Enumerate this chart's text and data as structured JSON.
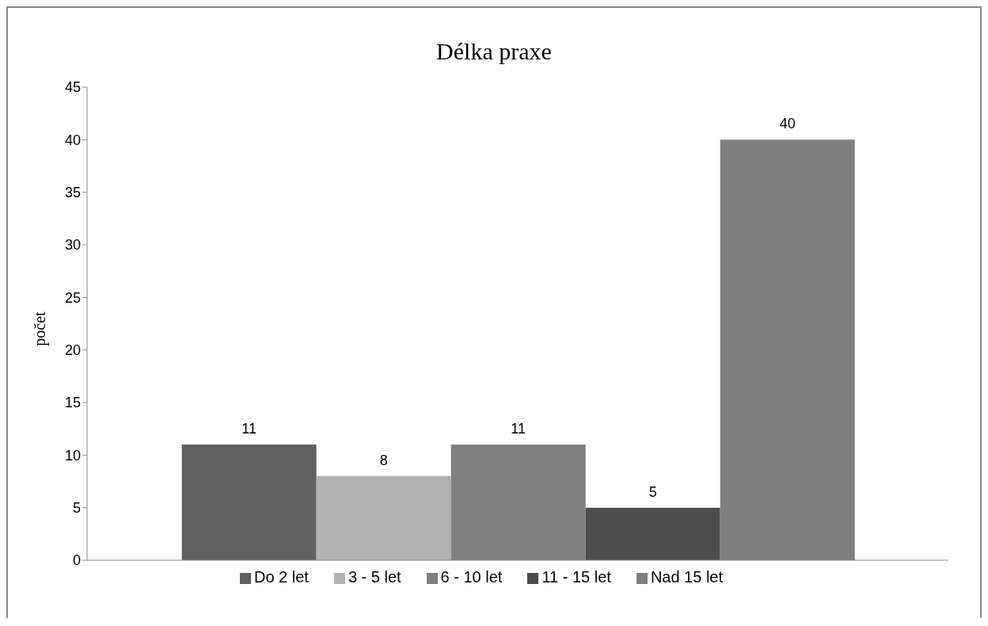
{
  "chart_data": {
    "type": "bar",
    "title": "Délka praxe",
    "ylabel": "počet",
    "categories": [
      null
    ],
    "series": [
      {
        "name": "Do 2 let",
        "color": "#606060",
        "values": [
          11
        ]
      },
      {
        "name": "3 - 5 let",
        "color": "#b2b2b2",
        "values": [
          8
        ]
      },
      {
        "name": "6 - 10 let",
        "color": "#808080",
        "values": [
          11
        ]
      },
      {
        "name": "11 - 15 let",
        "color": "#4d4d4d",
        "values": [
          5
        ]
      },
      {
        "name": "Nad 15 let",
        "color": "#7f7f7f",
        "values": [
          40
        ]
      }
    ],
    "ylim": [
      0,
      45
    ],
    "yticks": [
      0,
      5,
      10,
      15,
      20,
      25,
      30,
      35,
      40,
      45
    ],
    "grid": false,
    "legend": "bottom",
    "data_labels": true
  }
}
